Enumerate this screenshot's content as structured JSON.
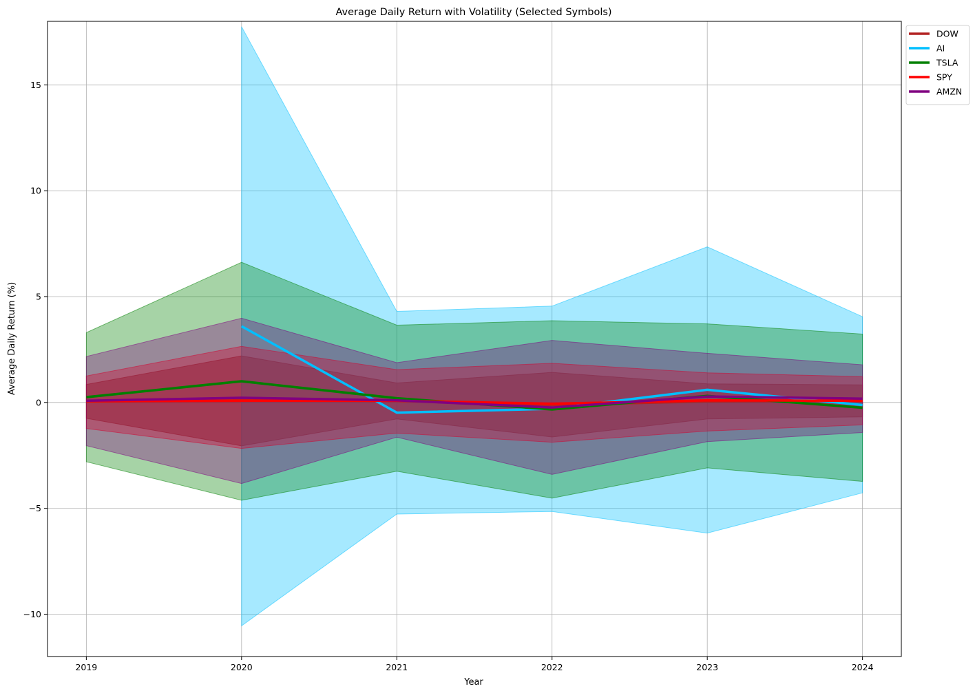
{
  "chart_data": {
    "type": "line",
    "title": "Average Daily Return with Volatility (Selected Symbols)",
    "xlabel": "Year",
    "ylabel": "Average Daily Return (%)",
    "x": [
      2019,
      2020,
      2021,
      2022,
      2023,
      2024
    ],
    "xlim": [
      2018.75,
      2024.25
    ],
    "ylim": [
      -12,
      18
    ],
    "yticks": [
      -10,
      -5,
      0,
      5,
      10,
      15
    ],
    "yticks_labels": [
      "−10",
      "−5",
      "0",
      "5",
      "10",
      "15"
    ],
    "grid": true,
    "legend_position": "outside top-right",
    "series": [
      {
        "name": "DOW",
        "color": "#b22222",
        "alpha": 0.5,
        "x": [
          2019,
          2020,
          2021,
          2022,
          2023,
          2024
        ],
        "mean": [
          0.05,
          0.1,
          0.08,
          -0.12,
          0.05,
          0.08
        ],
        "upper": [
          0.85,
          2.2,
          0.92,
          1.42,
          0.88,
          0.83
        ],
        "lower": [
          -0.75,
          -2.05,
          -0.78,
          -1.63,
          -0.78,
          -0.68
        ]
      },
      {
        "name": "AI",
        "color": "#00bfff",
        "alpha": 0.35,
        "x": [
          2020,
          2021,
          2022,
          2023,
          2024
        ],
        "mean": [
          3.6,
          -0.48,
          -0.3,
          0.6,
          -0.12
        ],
        "upper": [
          17.75,
          4.3,
          4.55,
          7.35,
          4.05
        ],
        "lower": [
          -10.55,
          -5.27,
          -5.15,
          -6.17,
          -4.27
        ]
      },
      {
        "name": "TSLA",
        "color": "#008000",
        "alpha": 0.35,
        "x": [
          2019,
          2020,
          2021,
          2022,
          2023,
          2024
        ],
        "mean": [
          0.25,
          1.0,
          0.2,
          -0.33,
          0.31,
          -0.25
        ],
        "upper": [
          3.3,
          6.62,
          3.65,
          3.86,
          3.71,
          3.23
        ],
        "lower": [
          -2.8,
          -4.62,
          -3.25,
          -4.52,
          -3.09,
          -3.73
        ]
      },
      {
        "name": "SPY",
        "color": "#ff0000",
        "alpha": 0.35,
        "x": [
          2019,
          2020,
          2021,
          2022,
          2023,
          2024
        ],
        "mean": [
          0.06,
          0.08,
          0.08,
          -0.06,
          0.1,
          0.08
        ],
        "upper": [
          1.25,
          2.65,
          1.55,
          1.85,
          1.4,
          1.22
        ],
        "lower": [
          -1.23,
          -2.17,
          -1.45,
          -1.88,
          -1.35,
          -1.06
        ]
      },
      {
        "name": "AMZN",
        "color": "#800080",
        "alpha": 0.35,
        "x": [
          2019,
          2020,
          2021,
          2022,
          2023,
          2024
        ],
        "mean": [
          0.08,
          0.22,
          0.1,
          -0.24,
          0.28,
          0.18
        ],
        "upper": [
          2.17,
          3.98,
          1.88,
          2.93,
          2.32,
          1.78
        ],
        "lower": [
          -2.04,
          -3.83,
          -1.64,
          -3.4,
          -1.85,
          -1.42
        ]
      }
    ]
  }
}
